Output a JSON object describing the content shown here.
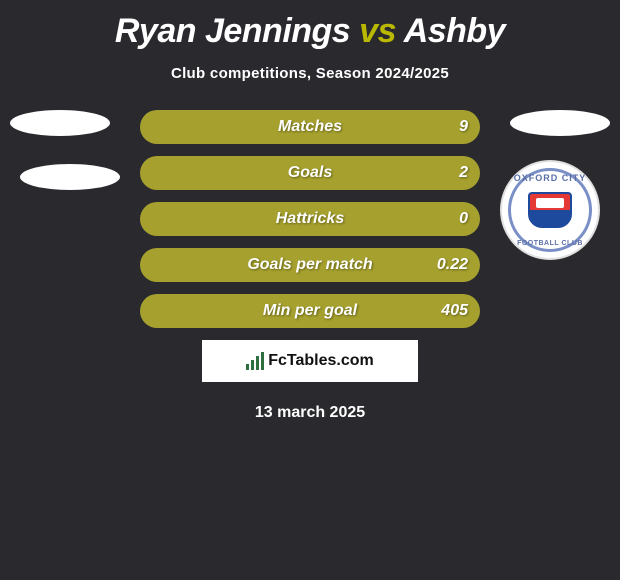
{
  "title": {
    "player1": "Ryan Jennings",
    "vs": "vs",
    "player2": "Ashby"
  },
  "subtitle": "Club competitions, Season 2024/2025",
  "stats": [
    {
      "label": "Matches",
      "value": "9"
    },
    {
      "label": "Goals",
      "value": "2"
    },
    {
      "label": "Hattricks",
      "value": "0"
    },
    {
      "label": "Goals per match",
      "value": "0.22"
    },
    {
      "label": "Min per goal",
      "value": "405"
    }
  ],
  "badge": {
    "top_text": "OXFORD CITY",
    "bottom_text": "FOOTBALL CLUB"
  },
  "branding": "FcTables.com",
  "date": "13 march 2025",
  "colors": {
    "background": "#2a2a2e",
    "bar": "#a6a12e",
    "accent": "#b8b900",
    "text": "#ffffff"
  }
}
